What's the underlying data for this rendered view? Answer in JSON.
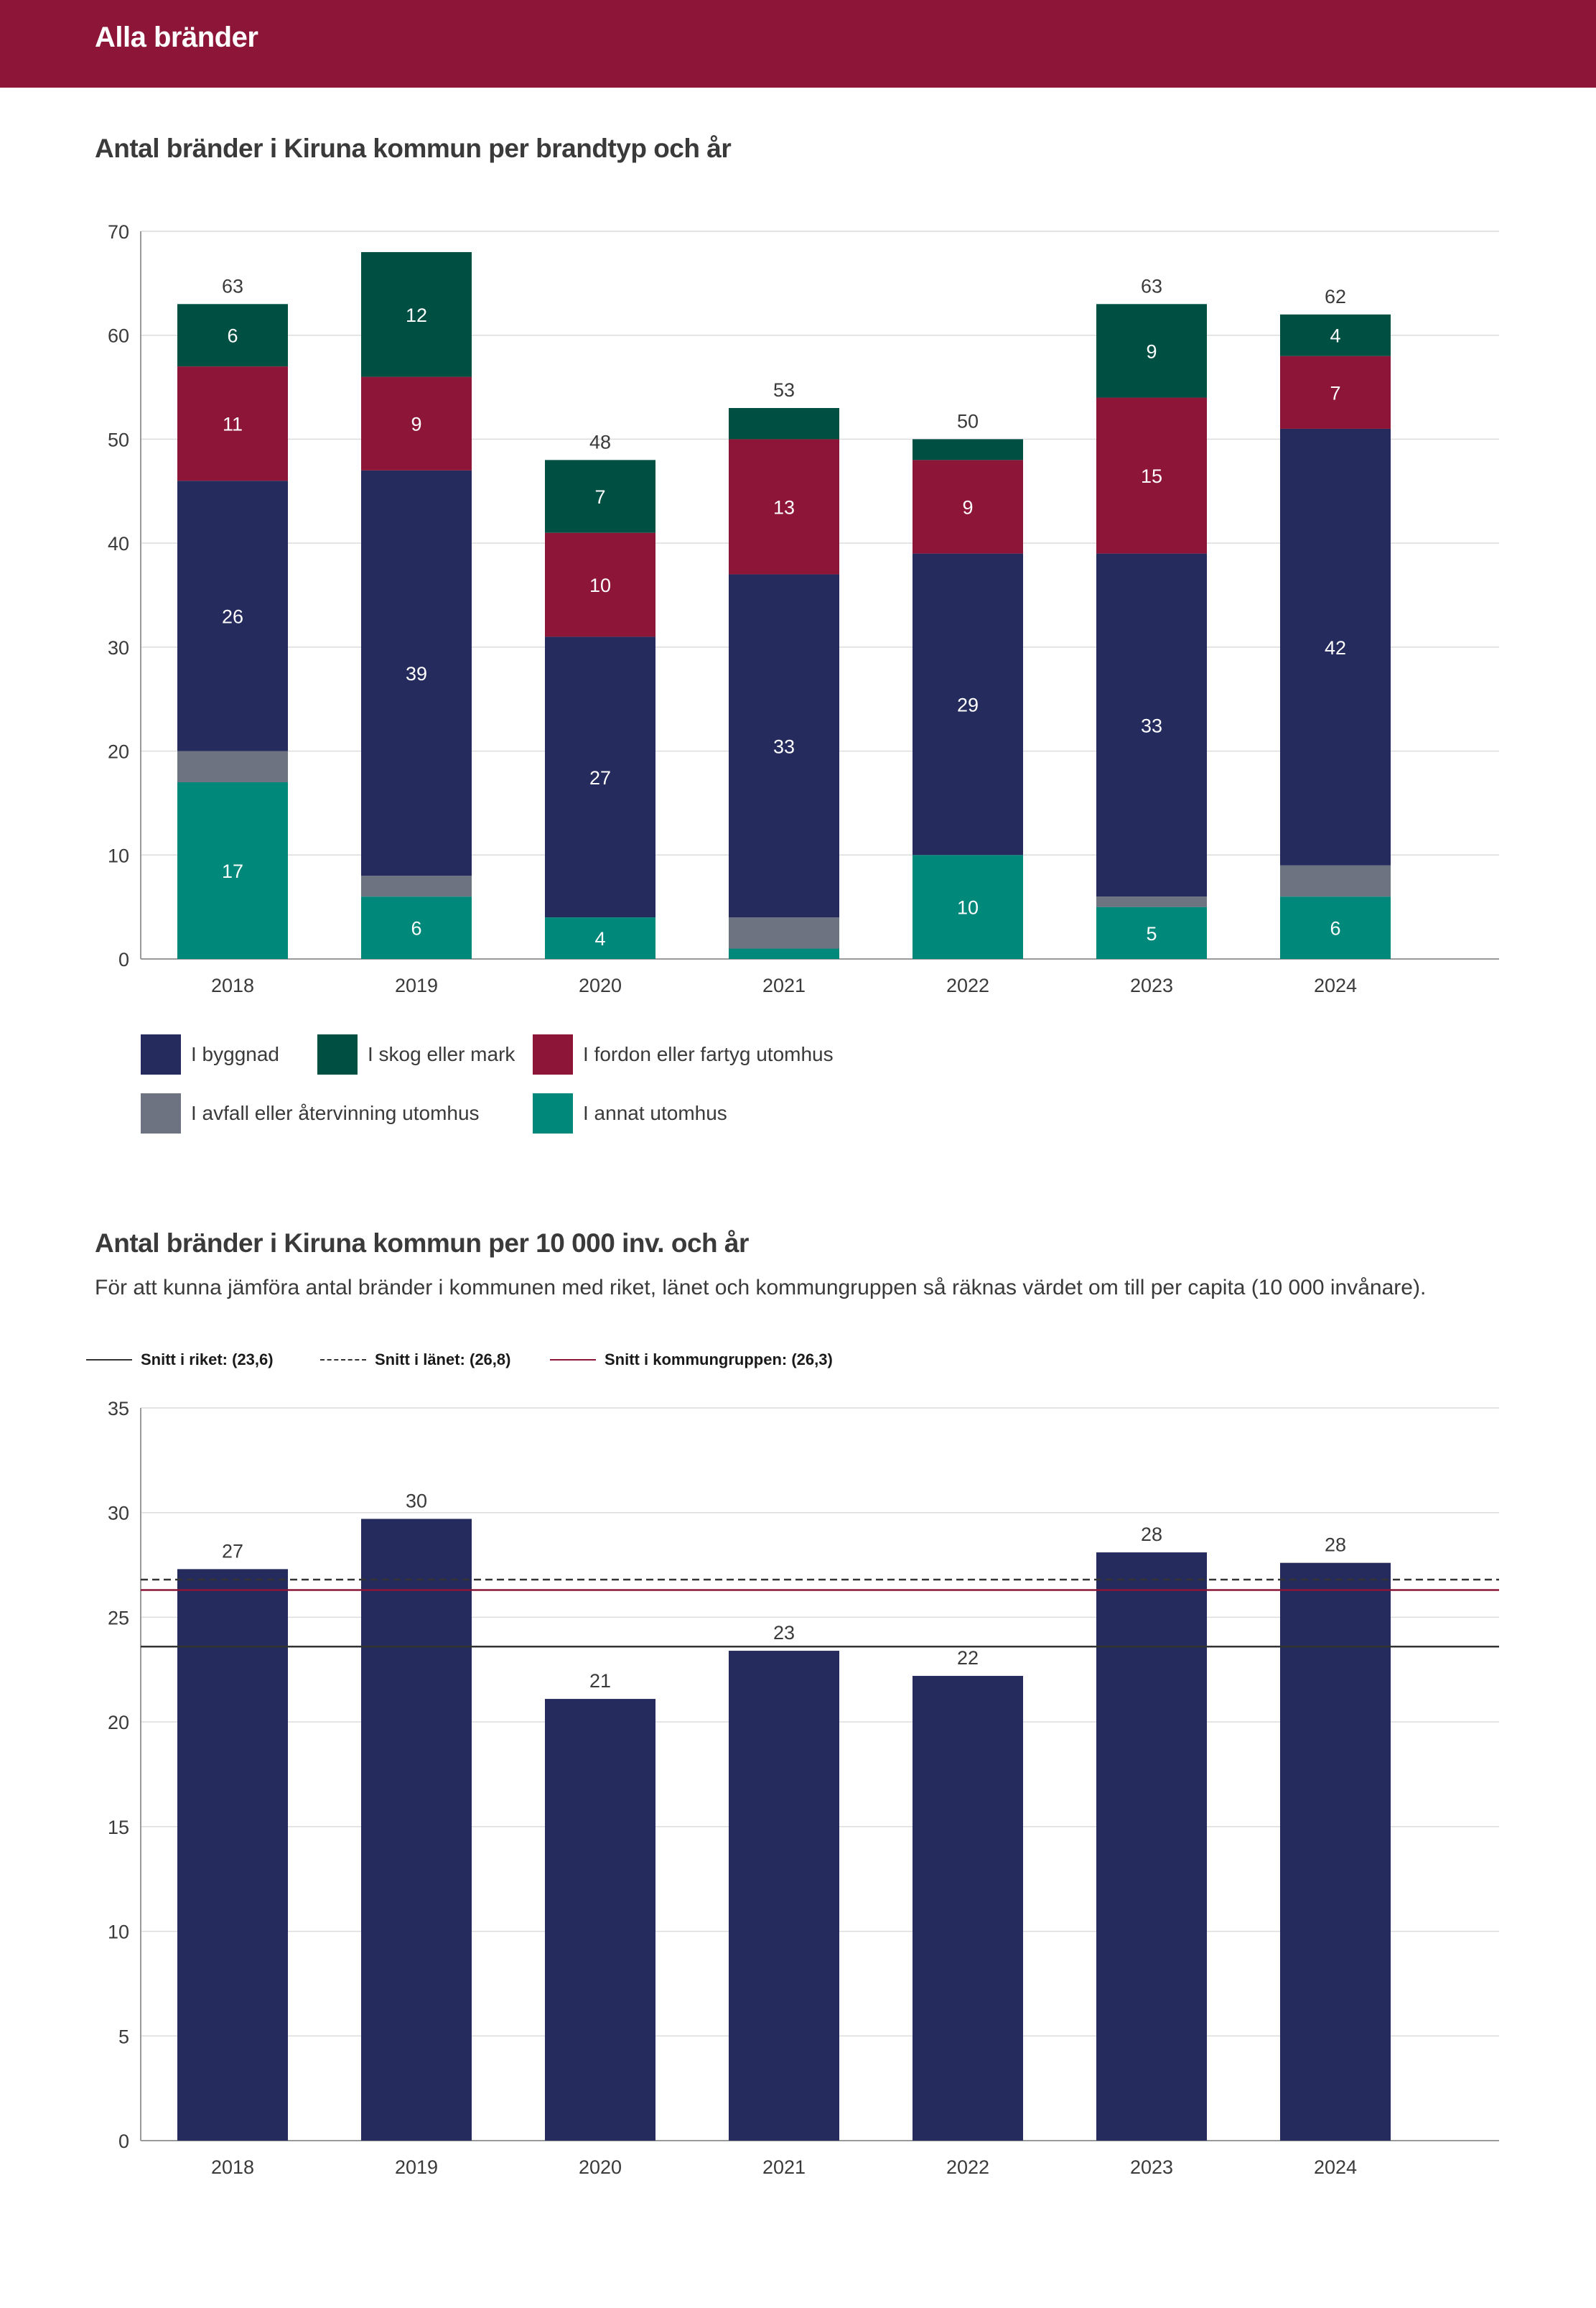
{
  "header": {
    "title": "Alla bränder"
  },
  "colors": {
    "header_bg": "#8c1538",
    "byggnad": "#252b5c",
    "skog": "#004f43",
    "fordon": "#8c1538",
    "avfall": "#6d7380",
    "annat": "#00897b",
    "grid": "#dcdcdc",
    "axis": "#9a9a9a",
    "riket": "#333333",
    "lanet": "#333333",
    "kommungruppen": "#8c1538"
  },
  "chart1": {
    "title": "Antal bränder i Kiruna kommun per brandtyp och år"
  },
  "chart2": {
    "title": "Antal bränder i Kiruna kommun per 10 000 inv. och år",
    "subtitle": "För att kunna jämföra antal bränder i kommunen med riket, länet och kommungruppen så räknas värdet om till per capita (10 000 invånare)."
  },
  "chart_data": [
    {
      "type": "bar",
      "stacked": true,
      "title": "Antal bränder i Kiruna kommun per brandtyp och år",
      "categories": [
        "2018",
        "2019",
        "2020",
        "2021",
        "2022",
        "2023",
        "2024"
      ],
      "ylim": [
        0,
        70
      ],
      "yticks": [
        0,
        10,
        20,
        30,
        40,
        50,
        60,
        70
      ],
      "totals": [
        63,
        68,
        48,
        53,
        50,
        63,
        62
      ],
      "total_labels": [
        "63",
        "",
        "48",
        "53",
        "50",
        "63",
        "62"
      ],
      "series": [
        {
          "key": "annat",
          "name": "I annat utomhus",
          "values": [
            17,
            6,
            4,
            1,
            10,
            5,
            6
          ],
          "labels": [
            "17",
            "6",
            "4",
            "",
            "10",
            "5",
            "6"
          ]
        },
        {
          "key": "avfall",
          "name": "I avfall eller återvinning utomhus",
          "values": [
            3,
            2,
            0,
            3,
            0,
            1,
            3
          ],
          "labels": [
            "",
            "",
            "",
            "",
            "",
            "",
            ""
          ]
        },
        {
          "key": "byggnad",
          "name": "I byggnad",
          "values": [
            26,
            39,
            27,
            33,
            29,
            33,
            42
          ],
          "labels": [
            "26",
            "39",
            "27",
            "33",
            "29",
            "33",
            "42"
          ]
        },
        {
          "key": "fordon",
          "name": "I fordon eller fartyg utomhus",
          "values": [
            11,
            9,
            10,
            13,
            9,
            15,
            7
          ],
          "labels": [
            "11",
            "9",
            "10",
            "13",
            "9",
            "15",
            "7"
          ]
        },
        {
          "key": "skog",
          "name": "I skog eller mark",
          "values": [
            6,
            12,
            7,
            3,
            2,
            9,
            4
          ],
          "labels": [
            "6",
            "12",
            "7",
            "",
            "",
            "9",
            "4"
          ]
        }
      ],
      "legend": [
        {
          "key": "byggnad",
          "label": "I byggnad"
        },
        {
          "key": "skog",
          "label": "I skog eller mark"
        },
        {
          "key": "fordon",
          "label": "I fordon eller fartyg utomhus"
        },
        {
          "key": "avfall",
          "label": "I avfall eller återvinning utomhus"
        },
        {
          "key": "annat",
          "label": "I annat utomhus"
        }
      ]
    },
    {
      "type": "bar",
      "title": "Antal bränder i Kiruna kommun per 10 000 inv. och år",
      "categories": [
        "2018",
        "2019",
        "2020",
        "2021",
        "2022",
        "2023",
        "2024"
      ],
      "values": [
        27.3,
        29.7,
        21.1,
        23.4,
        22.2,
        28.1,
        27.6
      ],
      "labels": [
        "27",
        "30",
        "21",
        "23",
        "22",
        "28",
        "28"
      ],
      "ylim": [
        0,
        35
      ],
      "yticks": [
        0,
        5,
        10,
        15,
        20,
        25,
        30,
        35
      ],
      "reference_lines": [
        {
          "key": "riket",
          "label": "Snitt i riket: (23,6)",
          "value": 23.6,
          "style": "solid"
        },
        {
          "key": "lanet",
          "label": "Snitt i länet: (26,8)",
          "value": 26.8,
          "style": "dashed"
        },
        {
          "key": "kommungruppen",
          "label": "Snitt i kommungruppen: (26,3)",
          "value": 26.3,
          "style": "solid"
        }
      ]
    }
  ]
}
